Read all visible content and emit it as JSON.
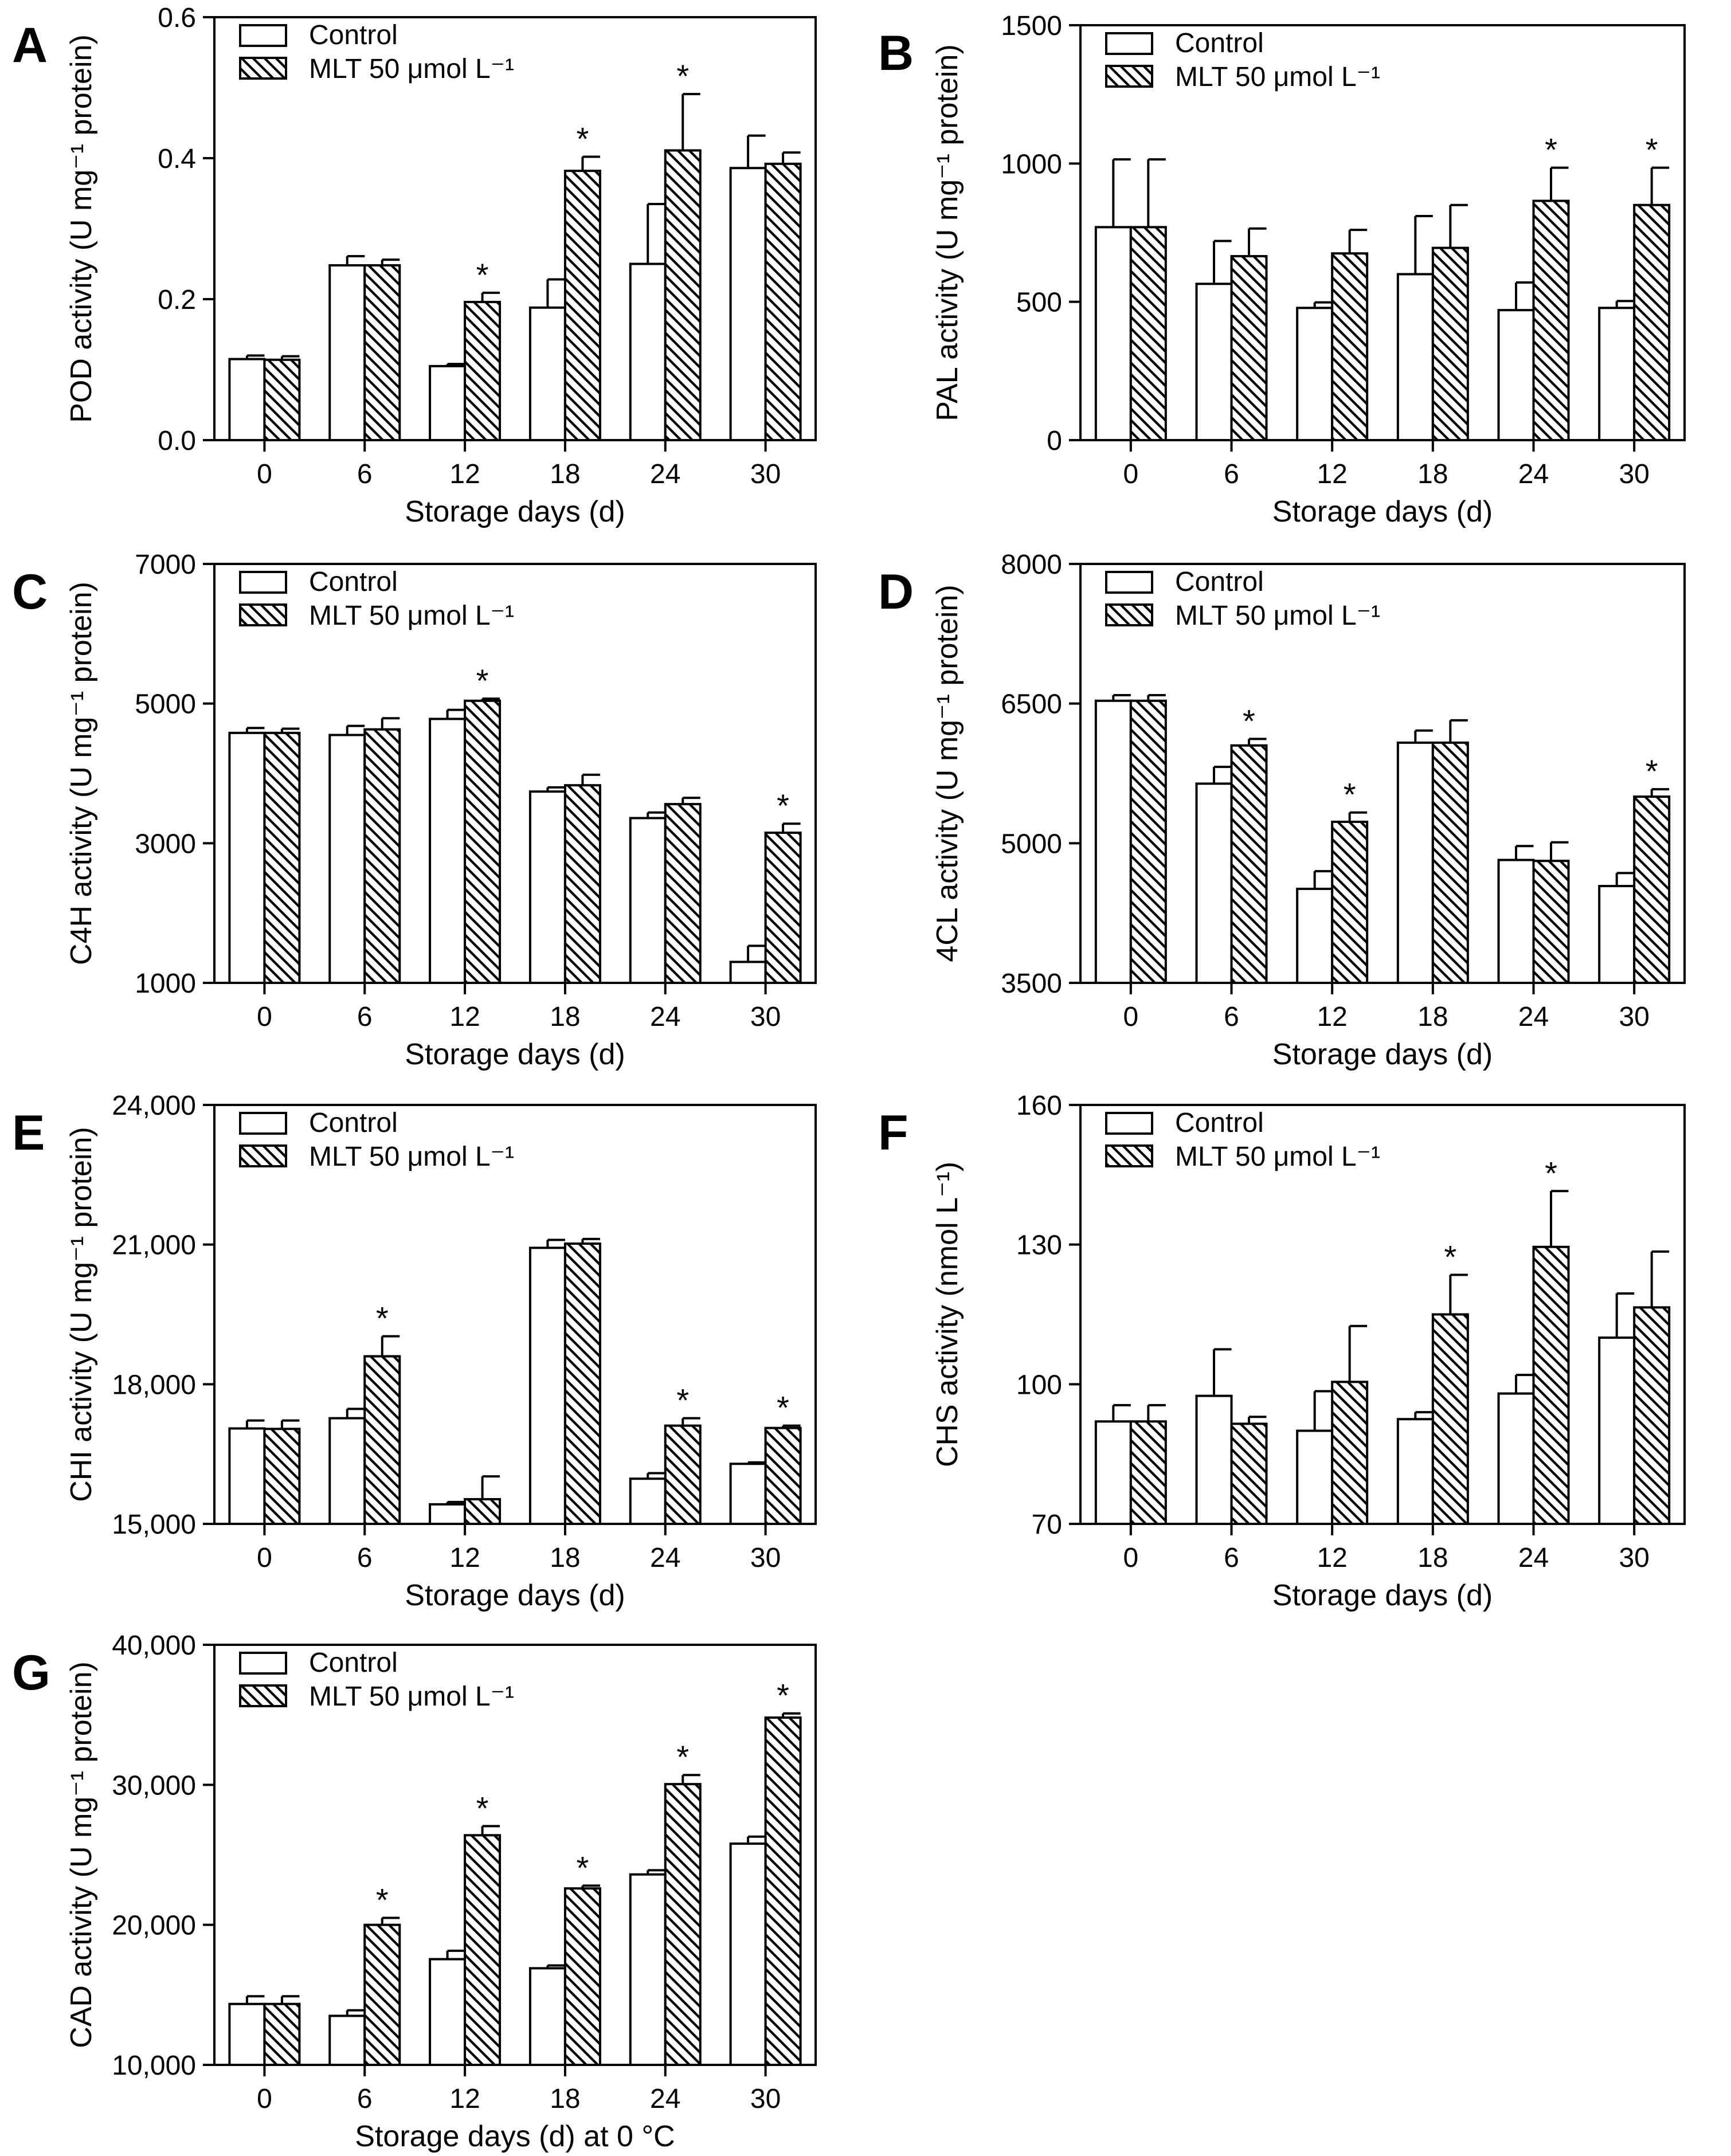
{
  "figure": {
    "legend_labels": [
      "Control",
      "MLT 50 μmol L⁻¹"
    ],
    "significance_marker": "*",
    "colors": {
      "control_fill": "#ffffff",
      "mlt_hatch": "#000000",
      "stroke": "#000000"
    }
  },
  "chart_data": [
    {
      "panel": "A",
      "type": "bar",
      "categories": [
        "0",
        "6",
        "12",
        "18",
        "24",
        "30"
      ],
      "ylabel": "POD activity (U mg⁻¹ protein)",
      "xlabel": "Storage days (d)",
      "ylim": [
        0,
        0.6
      ],
      "yticks": [
        0.0,
        0.2,
        0.4,
        0.6
      ],
      "ytick_labels": [
        "0.0",
        "0.2",
        "0.4",
        "0.6"
      ],
      "series": [
        {
          "name": "Control",
          "values": [
            0.115,
            0.248,
            0.105,
            0.188,
            0.25,
            0.386
          ],
          "errors": [
            0.005,
            0.013,
            0.003,
            0.04,
            0.085,
            0.046
          ]
        },
        {
          "name": "MLT 50 μmol L⁻¹",
          "values": [
            0.114,
            0.248,
            0.196,
            0.382,
            0.411,
            0.392
          ],
          "errors": [
            0.005,
            0.008,
            0.013,
            0.02,
            0.08,
            0.016
          ],
          "significant": [
            false,
            false,
            true,
            true,
            true,
            false
          ]
        }
      ]
    },
    {
      "panel": "B",
      "type": "bar",
      "categories": [
        "0",
        "6",
        "12",
        "18",
        "24",
        "30"
      ],
      "ylabel": "PAL activity (U mg⁻¹ protein)",
      "xlabel": "Storage days (d)",
      "ylim": [
        0,
        1500
      ],
      "yticks": [
        0,
        500,
        1000,
        1500
      ],
      "ytick_labels": [
        "0",
        "500",
        "1000",
        "1500"
      ],
      "series": [
        {
          "name": "Control",
          "values": [
            770,
            565,
            478,
            600,
            470,
            478
          ],
          "errors": [
            245,
            155,
            20,
            210,
            100,
            25
          ]
        },
        {
          "name": "MLT 50 μmol L⁻¹",
          "values": [
            770,
            665,
            675,
            695,
            865,
            850
          ],
          "errors": [
            245,
            100,
            85,
            155,
            120,
            135
          ],
          "significant": [
            false,
            false,
            false,
            false,
            true,
            true
          ]
        }
      ]
    },
    {
      "panel": "C",
      "type": "bar",
      "categories": [
        "0",
        "6",
        "12",
        "18",
        "24",
        "30"
      ],
      "ylabel": "C4H activity (U mg⁻¹ protein)",
      "xlabel": "Storage days (d)",
      "ylim": [
        1000,
        7000
      ],
      "yticks": [
        1000,
        3000,
        5000,
        7000
      ],
      "ytick_labels": [
        "1000",
        "3000",
        "5000",
        "7000"
      ],
      "series": [
        {
          "name": "Control",
          "values": [
            4580,
            4550,
            4780,
            3740,
            3360,
            1300
          ],
          "errors": [
            70,
            130,
            130,
            60,
            80,
            230
          ]
        },
        {
          "name": "MLT 50 μmol L⁻¹",
          "values": [
            4580,
            4630,
            5040,
            3830,
            3560,
            3150
          ],
          "errors": [
            60,
            160,
            30,
            150,
            90,
            130
          ],
          "significant": [
            false,
            false,
            true,
            false,
            false,
            true
          ]
        }
      ]
    },
    {
      "panel": "D",
      "type": "bar",
      "categories": [
        "0",
        "6",
        "12",
        "18",
        "24",
        "30"
      ],
      "ylabel": "4CL activity (U mg⁻¹ protein)",
      "xlabel": "Storage days (d)",
      "ylim": [
        3500,
        8000
      ],
      "yticks": [
        3500,
        5000,
        6500,
        8000
      ],
      "ytick_labels": [
        "3500",
        "5000",
        "6500",
        "8000"
      ],
      "series": [
        {
          "name": "Control",
          "values": [
            6530,
            5640,
            4510,
            6080,
            4820,
            4540
          ],
          "errors": [
            60,
            180,
            190,
            130,
            150,
            140
          ]
        },
        {
          "name": "MLT 50 μmol L⁻¹",
          "values": [
            6530,
            6050,
            5230,
            6080,
            4810,
            5500
          ],
          "errors": [
            60,
            70,
            100,
            240,
            200,
            80
          ],
          "significant": [
            false,
            true,
            true,
            false,
            false,
            true
          ]
        }
      ]
    },
    {
      "panel": "E",
      "type": "bar",
      "categories": [
        "0",
        "6",
        "12",
        "18",
        "24",
        "30"
      ],
      "ylabel": "CHI activity (U mg⁻¹ protein)",
      "xlabel": "Storage days (d)",
      "ylim": [
        15000,
        24000
      ],
      "yticks": [
        15000,
        18000,
        21000,
        24000
      ],
      "ytick_labels": [
        "15,000",
        "18,000",
        "21,000",
        "24,000"
      ],
      "series": [
        {
          "name": "Control",
          "values": [
            17050,
            17270,
            15420,
            20930,
            15970,
            16290
          ],
          "errors": [
            170,
            200,
            50,
            170,
            120,
            30
          ]
        },
        {
          "name": "MLT 50 μmol L⁻¹",
          "values": [
            17040,
            18600,
            15530,
            21020,
            17110,
            17060
          ],
          "errors": [
            180,
            430,
            490,
            100,
            160,
            50
          ],
          "significant": [
            false,
            true,
            false,
            false,
            true,
            true
          ]
        }
      ]
    },
    {
      "panel": "F",
      "type": "bar",
      "categories": [
        "0",
        "6",
        "12",
        "18",
        "24",
        "30"
      ],
      "ylabel": "CHS activity (nmol L⁻¹)",
      "xlabel": "Storage days (d)",
      "ylim": [
        70,
        160
      ],
      "yticks": [
        70,
        100,
        130,
        160
      ],
      "ytick_labels": [
        "70",
        "100",
        "130",
        "160"
      ],
      "series": [
        {
          "name": "Control",
          "values": [
            92,
            97.5,
            90,
            92.5,
            98,
            110
          ],
          "errors": [
            3.5,
            10,
            8.5,
            1.5,
            4,
            9.5
          ]
        },
        {
          "name": "MLT 50 μmol L⁻¹",
          "values": [
            92,
            91.5,
            100.5,
            115,
            129.5,
            116.5
          ],
          "errors": [
            3.5,
            1.5,
            12,
            8.5,
            12,
            12
          ],
          "significant": [
            false,
            false,
            false,
            true,
            true,
            false
          ]
        }
      ]
    },
    {
      "panel": "G",
      "type": "bar",
      "categories": [
        "0",
        "6",
        "12",
        "18",
        "24",
        "30"
      ],
      "ylabel": "CAD activity (U mg⁻¹ protein)",
      "xlabel": "Storage days (d) at 0 °C",
      "ylim": [
        10000,
        40000
      ],
      "yticks": [
        10000,
        20000,
        30000,
        40000
      ],
      "ytick_labels": [
        "10,000",
        "20,000",
        "30,000",
        "40,000"
      ],
      "series": [
        {
          "name": "Control",
          "values": [
            14350,
            13500,
            17550,
            16900,
            23600,
            25800
          ],
          "errors": [
            550,
            400,
            600,
            200,
            300,
            500
          ]
        },
        {
          "name": "MLT 50 μmol L⁻¹",
          "values": [
            14350,
            20000,
            26400,
            22600,
            30050,
            34800
          ],
          "errors": [
            550,
            500,
            650,
            200,
            650,
            300
          ],
          "significant": [
            false,
            true,
            true,
            true,
            true,
            true
          ]
        }
      ]
    }
  ]
}
